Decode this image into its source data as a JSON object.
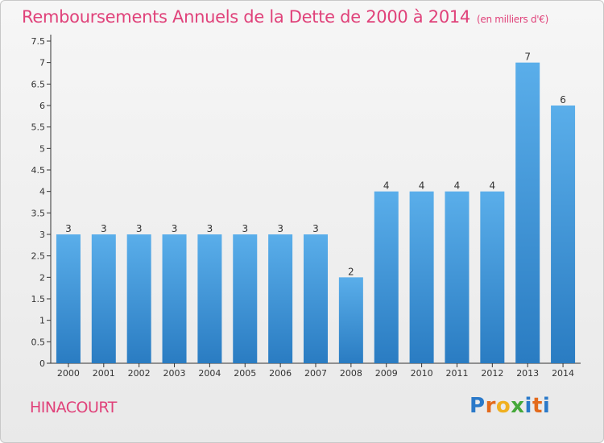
{
  "header": {
    "title": "Remboursements Annuels de la Dette de 2000 à 2014",
    "subtitle": "(en milliers d'€)"
  },
  "footer": {
    "commune": "HINACOURT",
    "logo_letters": [
      "P",
      "r",
      "o",
      "x",
      "i",
      "t",
      "i"
    ],
    "logo_colors": [
      "#2a79c9",
      "#e36a1c",
      "#f0b020",
      "#45a83a",
      "#2a79c9",
      "#e36a1c",
      "#2a79c9"
    ]
  },
  "chart_data": {
    "type": "bar",
    "categories": [
      "2000",
      "2001",
      "2002",
      "2003",
      "2004",
      "2005",
      "2006",
      "2007",
      "2008",
      "2009",
      "2010",
      "2011",
      "2012",
      "2013",
      "2014"
    ],
    "values": [
      3,
      3,
      3,
      3,
      3,
      3,
      3,
      3,
      2,
      4,
      4,
      4,
      4,
      7,
      6
    ],
    "data_labels": [
      "3",
      "3",
      "3",
      "3",
      "3",
      "3",
      "3",
      "3",
      "2",
      "4",
      "4",
      "4",
      "4",
      "7",
      "6"
    ],
    "yticks": [
      "0",
      "0.5",
      "1",
      "1.5",
      "2",
      "2.5",
      "3",
      "3.5",
      "4",
      "4.5",
      "5",
      "5.5",
      "6",
      "6.5",
      "7",
      "7.5"
    ],
    "ylim": [
      0,
      7.5
    ],
    "grid": false,
    "colors": {
      "bar_light": "#5aaeea",
      "bar_dark": "#2a7cc2",
      "axis": "#333333"
    }
  }
}
